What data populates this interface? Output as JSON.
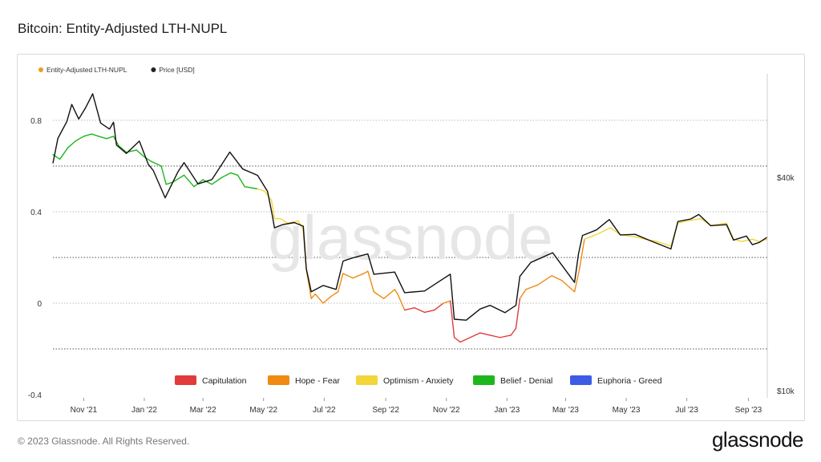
{
  "title": "Bitcoin: Entity-Adjusted LTH-NUPL",
  "footer": {
    "copyright": "© 2023 Glassnode. All Rights Reserved.",
    "logo": "glassnode"
  },
  "watermark": "glassnode",
  "colors": {
    "capitulation": "#e23b3b",
    "hope_fear": "#f08a12",
    "optimism_anxiety": "#f2d63a",
    "belief_denial": "#1db71d",
    "euphoria_greed": "#3c5ce6",
    "price": "#111111"
  },
  "chart_data": {
    "type": "line",
    "legend_top": [
      {
        "label": "Entity-Adjusted LTH-NUPL",
        "color": "#f29a1f"
      },
      {
        "label": "Price [USD]",
        "color": "#222222"
      }
    ],
    "legend_bottom": [
      {
        "label": "Capitulation",
        "color": "#e23b3b"
      },
      {
        "label": "Hope - Fear",
        "color": "#f08a12"
      },
      {
        "label": "Optimism - Anxiety",
        "color": "#f2d63a"
      },
      {
        "label": "Belief - Denial",
        "color": "#1db71d"
      },
      {
        "label": "Euphoria - Greed",
        "color": "#3c5ce6"
      }
    ],
    "x_ticks": [
      "Nov '21",
      "Jan '22",
      "Mar '22",
      "May '22",
      "Jul '22",
      "Sep '22",
      "Nov '22",
      "Jan '23",
      "Mar '23",
      "May '23",
      "Jul '23",
      "Sep '23"
    ],
    "y_left_ticks": [
      {
        "label": "0.8",
        "value": 0.8
      },
      {
        "label": "0.4",
        "value": 0.4
      },
      {
        "label": "0",
        "value": 0
      },
      {
        "label": "-0.4",
        "value": -0.4
      }
    ],
    "y_right_ticks": [
      {
        "label": "$40k",
        "value": 40000
      },
      {
        "label": "$10k",
        "value": 10000
      }
    ],
    "ylim_left": [
      -0.4,
      0.85
    ],
    "y_right_scale": "log",
    "x_range": [
      "2021-10-01",
      "2023-09-20"
    ],
    "series": [
      {
        "name": "Entity-Adjusted LTH-NUPL",
        "points": [
          [
            "2021-10-01",
            0.65
          ],
          [
            "2021-10-08",
            0.63
          ],
          [
            "2021-10-16",
            0.68
          ],
          [
            "2021-10-24",
            0.71
          ],
          [
            "2021-11-01",
            0.73
          ],
          [
            "2021-11-09",
            0.74
          ],
          [
            "2021-11-16",
            0.73
          ],
          [
            "2021-11-24",
            0.72
          ],
          [
            "2021-12-01",
            0.73
          ],
          [
            "2021-12-06",
            0.69
          ],
          [
            "2021-12-14",
            0.66
          ],
          [
            "2021-12-24",
            0.67
          ],
          [
            "2022-01-01",
            0.64
          ],
          [
            "2022-01-08",
            0.62
          ],
          [
            "2022-01-18",
            0.6
          ],
          [
            "2022-01-23",
            0.52
          ],
          [
            "2022-01-30",
            0.53
          ],
          [
            "2022-02-10",
            0.56
          ],
          [
            "2022-02-20",
            0.51
          ],
          [
            "2022-03-01",
            0.54
          ],
          [
            "2022-03-10",
            0.52
          ],
          [
            "2022-03-20",
            0.55
          ],
          [
            "2022-03-29",
            0.57
          ],
          [
            "2022-04-05",
            0.56
          ],
          [
            "2022-04-12",
            0.51
          ],
          [
            "2022-04-25",
            0.5
          ],
          [
            "2022-05-02",
            0.49
          ],
          [
            "2022-05-09",
            0.45
          ],
          [
            "2022-05-12",
            0.37
          ],
          [
            "2022-05-18",
            0.37
          ],
          [
            "2022-05-25",
            0.35
          ],
          [
            "2022-06-05",
            0.36
          ],
          [
            "2022-06-10",
            0.32
          ],
          [
            "2022-06-13",
            0.15
          ],
          [
            "2022-06-18",
            0.02
          ],
          [
            "2022-06-22",
            0.04
          ],
          [
            "2022-06-30",
            0.0
          ],
          [
            "2022-07-08",
            0.03
          ],
          [
            "2022-07-15",
            0.05
          ],
          [
            "2022-07-20",
            0.13
          ],
          [
            "2022-07-30",
            0.11
          ],
          [
            "2022-08-10",
            0.13
          ],
          [
            "2022-08-14",
            0.14
          ],
          [
            "2022-08-20",
            0.05
          ],
          [
            "2022-08-30",
            0.02
          ],
          [
            "2022-09-10",
            0.06
          ],
          [
            "2022-09-13",
            0.04
          ],
          [
            "2022-09-20",
            -0.03
          ],
          [
            "2022-09-30",
            -0.02
          ],
          [
            "2022-10-10",
            -0.04
          ],
          [
            "2022-10-20",
            -0.03
          ],
          [
            "2022-10-29",
            0.0
          ],
          [
            "2022-11-05",
            0.01
          ],
          [
            "2022-11-09",
            -0.15
          ],
          [
            "2022-11-15",
            -0.17
          ],
          [
            "2022-11-25",
            -0.15
          ],
          [
            "2022-12-05",
            -0.13
          ],
          [
            "2022-12-15",
            -0.14
          ],
          [
            "2022-12-25",
            -0.15
          ],
          [
            "2023-01-05",
            -0.14
          ],
          [
            "2023-01-10",
            -0.11
          ],
          [
            "2023-01-14",
            0.02
          ],
          [
            "2023-01-20",
            0.06
          ],
          [
            "2023-02-01",
            0.08
          ],
          [
            "2023-02-15",
            0.12
          ],
          [
            "2023-02-25",
            0.1
          ],
          [
            "2023-03-10",
            0.05
          ],
          [
            "2023-03-15",
            0.15
          ],
          [
            "2023-03-20",
            0.28
          ],
          [
            "2023-04-01",
            0.3
          ],
          [
            "2023-04-15",
            0.33
          ],
          [
            "2023-04-25",
            0.3
          ],
          [
            "2023-05-10",
            0.29
          ],
          [
            "2023-05-20",
            0.28
          ],
          [
            "2023-06-01",
            0.27
          ],
          [
            "2023-06-15",
            0.25
          ],
          [
            "2023-06-22",
            0.35
          ],
          [
            "2023-07-01",
            0.36
          ],
          [
            "2023-07-15",
            0.37
          ],
          [
            "2023-07-25",
            0.34
          ],
          [
            "2023-08-10",
            0.35
          ],
          [
            "2023-08-17",
            0.28
          ],
          [
            "2023-08-25",
            0.27
          ],
          [
            "2023-09-05",
            0.28
          ],
          [
            "2023-09-12",
            0.27
          ],
          [
            "2023-09-20",
            0.28
          ]
        ]
      },
      {
        "name": "Price [USD]",
        "points": [
          [
            "2021-10-01",
            43800
          ],
          [
            "2021-10-06",
            51500
          ],
          [
            "2021-10-15",
            57400
          ],
          [
            "2021-10-20",
            64200
          ],
          [
            "2021-10-27",
            58400
          ],
          [
            "2021-11-03",
            62900
          ],
          [
            "2021-11-10",
            68800
          ],
          [
            "2021-11-18",
            56900
          ],
          [
            "2021-11-27",
            54700
          ],
          [
            "2021-12-01",
            57200
          ],
          [
            "2021-12-04",
            49300
          ],
          [
            "2021-12-14",
            46700
          ],
          [
            "2021-12-27",
            50600
          ],
          [
            "2022-01-05",
            43500
          ],
          [
            "2022-01-10",
            41800
          ],
          [
            "2022-01-22",
            35000
          ],
          [
            "2022-02-04",
            41500
          ],
          [
            "2022-02-10",
            44000
          ],
          [
            "2022-02-24",
            38300
          ],
          [
            "2022-03-10",
            39400
          ],
          [
            "2022-03-28",
            47100
          ],
          [
            "2022-04-10",
            42200
          ],
          [
            "2022-04-25",
            40500
          ],
          [
            "2022-05-05",
            36500
          ],
          [
            "2022-05-10",
            31000
          ],
          [
            "2022-05-12",
            28800
          ],
          [
            "2022-05-20",
            29400
          ],
          [
            "2022-06-01",
            29800
          ],
          [
            "2022-06-10",
            29100
          ],
          [
            "2022-06-13",
            22100
          ],
          [
            "2022-06-18",
            19000
          ],
          [
            "2022-06-30",
            19800
          ],
          [
            "2022-07-13",
            19300
          ],
          [
            "2022-07-20",
            23200
          ],
          [
            "2022-07-30",
            23700
          ],
          [
            "2022-08-14",
            24300
          ],
          [
            "2022-08-20",
            21300
          ],
          [
            "2022-09-10",
            21600
          ],
          [
            "2022-09-20",
            18900
          ],
          [
            "2022-10-10",
            19100
          ],
          [
            "2022-10-29",
            20700
          ],
          [
            "2022-11-05",
            21300
          ],
          [
            "2022-11-09",
            15900
          ],
          [
            "2022-11-21",
            15800
          ],
          [
            "2022-12-05",
            17000
          ],
          [
            "2022-12-15",
            17400
          ],
          [
            "2022-12-30",
            16600
          ],
          [
            "2023-01-10",
            17400
          ],
          [
            "2023-01-14",
            21000
          ],
          [
            "2023-01-25",
            23000
          ],
          [
            "2023-02-16",
            24500
          ],
          [
            "2023-03-10",
            20200
          ],
          [
            "2023-03-14",
            24300
          ],
          [
            "2023-03-18",
            27400
          ],
          [
            "2023-04-01",
            28400
          ],
          [
            "2023-04-14",
            30400
          ],
          [
            "2023-04-25",
            27500
          ],
          [
            "2023-05-10",
            27600
          ],
          [
            "2023-05-25",
            26500
          ],
          [
            "2023-06-15",
            25100
          ],
          [
            "2023-06-22",
            30000
          ],
          [
            "2023-07-05",
            30500
          ],
          [
            "2023-07-13",
            31400
          ],
          [
            "2023-07-25",
            29200
          ],
          [
            "2023-08-10",
            29400
          ],
          [
            "2023-08-17",
            26600
          ],
          [
            "2023-08-30",
            27300
          ],
          [
            "2023-09-05",
            25800
          ],
          [
            "2023-09-12",
            26200
          ],
          [
            "2023-09-20",
            27100
          ]
        ]
      }
    ]
  }
}
